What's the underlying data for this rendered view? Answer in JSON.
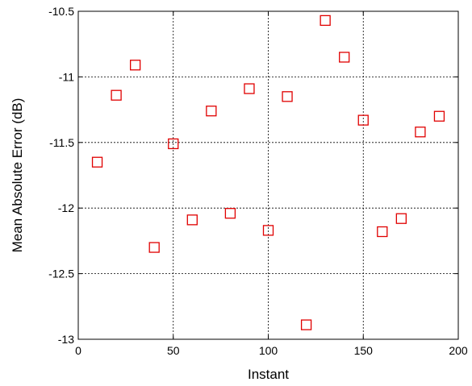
{
  "chart_data": {
    "type": "scatter",
    "title": "",
    "xlabel": "Instant",
    "ylabel": "Mean Absolute Error (dB)",
    "xlim": [
      0,
      200
    ],
    "ylim": [
      -13,
      -10.5
    ],
    "xticks": [
      0,
      50,
      100,
      150,
      200
    ],
    "yticks": [
      -13,
      -12.5,
      -12,
      -11.5,
      -11,
      -10.5
    ],
    "xtick_labels": [
      "0",
      "50",
      "100",
      "150",
      "200"
    ],
    "ytick_labels": [
      "-13",
      "-12.5",
      "-12",
      "-11.5",
      "-11",
      "-10.5"
    ],
    "grid": true,
    "legend": "none",
    "marker": "square",
    "marker_color": "#e00000",
    "series": [
      {
        "x": [
          10,
          20,
          30,
          40,
          50,
          60,
          70,
          80,
          90,
          100,
          110,
          120,
          130,
          140,
          150,
          160,
          170,
          180,
          190
        ],
        "y": [
          -11.65,
          -11.14,
          -10.91,
          -12.3,
          -11.51,
          -12.09,
          -11.26,
          -12.04,
          -11.09,
          -12.17,
          -11.15,
          -12.89,
          -10.57,
          -10.85,
          -11.33,
          -12.18,
          -12.08,
          -11.42,
          -11.3
        ]
      }
    ]
  }
}
